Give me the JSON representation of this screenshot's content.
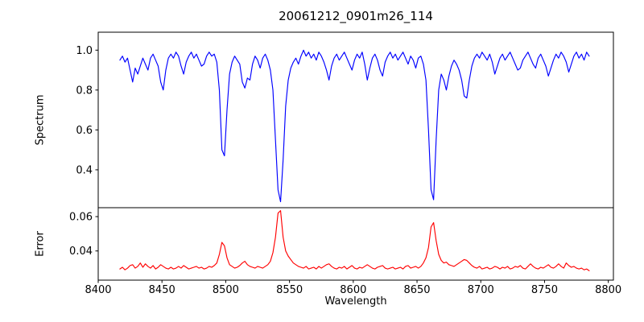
{
  "figure": {
    "title": "20061212_0901m26_114",
    "xlabel": "Wavelength",
    "ylabel_top": "Spectrum",
    "ylabel_bottom": "Error",
    "background": "#ffffff",
    "spine_color": "#000000",
    "tick_color": "#000000"
  },
  "chart_data": [
    {
      "type": "line",
      "panel": "top",
      "series_name": "Spectrum",
      "title": "20061212_0901m26_114",
      "ylabel": "Spectrum",
      "color": "#0000ff",
      "grid": false,
      "legend": "none",
      "x_start": 8417,
      "x_step": 2,
      "xlim": [
        8400,
        8804
      ],
      "ylim": [
        0.21,
        1.09
      ],
      "yticks": [
        1.0,
        0.8,
        0.6,
        0.4
      ],
      "ytick_labels": [
        "1.0",
        "0.8",
        "0.6",
        "0.4"
      ],
      "absorption_line_centers": [
        8498,
        8542,
        8662
      ],
      "values": [
        0.95,
        0.97,
        0.94,
        0.96,
        0.9,
        0.84,
        0.91,
        0.88,
        0.92,
        0.96,
        0.93,
        0.9,
        0.96,
        0.98,
        0.95,
        0.92,
        0.84,
        0.8,
        0.9,
        0.96,
        0.98,
        0.96,
        0.99,
        0.97,
        0.92,
        0.88,
        0.94,
        0.97,
        0.99,
        0.96,
        0.98,
        0.95,
        0.92,
        0.93,
        0.97,
        0.99,
        0.97,
        0.98,
        0.94,
        0.8,
        0.5,
        0.47,
        0.7,
        0.88,
        0.94,
        0.97,
        0.95,
        0.93,
        0.84,
        0.81,
        0.86,
        0.85,
        0.93,
        0.97,
        0.95,
        0.91,
        0.96,
        0.98,
        0.95,
        0.9,
        0.8,
        0.55,
        0.3,
        0.24,
        0.45,
        0.72,
        0.85,
        0.91,
        0.94,
        0.96,
        0.93,
        0.97,
        1.0,
        0.97,
        0.99,
        0.96,
        0.98,
        0.95,
        0.99,
        0.97,
        0.94,
        0.9,
        0.85,
        0.92,
        0.96,
        0.98,
        0.95,
        0.97,
        0.99,
        0.96,
        0.93,
        0.9,
        0.95,
        0.98,
        0.96,
        0.99,
        0.93,
        0.85,
        0.91,
        0.96,
        0.98,
        0.95,
        0.9,
        0.87,
        0.94,
        0.97,
        0.99,
        0.96,
        0.98,
        0.95,
        0.97,
        0.99,
        0.96,
        0.93,
        0.97,
        0.95,
        0.91,
        0.96,
        0.97,
        0.93,
        0.85,
        0.6,
        0.3,
        0.25,
        0.55,
        0.8,
        0.88,
        0.85,
        0.8,
        0.87,
        0.92,
        0.95,
        0.93,
        0.9,
        0.85,
        0.77,
        0.76,
        0.85,
        0.92,
        0.96,
        0.98,
        0.96,
        0.99,
        0.97,
        0.95,
        0.98,
        0.94,
        0.88,
        0.92,
        0.96,
        0.98,
        0.95,
        0.97,
        0.99,
        0.96,
        0.93,
        0.9,
        0.91,
        0.95,
        0.97,
        0.99,
        0.96,
        0.93,
        0.91,
        0.96,
        0.98,
        0.95,
        0.92,
        0.87,
        0.91,
        0.95,
        0.98,
        0.96,
        0.99,
        0.97,
        0.94,
        0.89,
        0.93,
        0.97,
        0.99,
        0.96,
        0.98,
        0.95,
        0.99,
        0.97
      ]
    },
    {
      "type": "line",
      "panel": "bottom",
      "series_name": "Error",
      "ylabel": "Error",
      "xlabel": "Wavelength",
      "color": "#ff0000",
      "grid": false,
      "legend": "none",
      "x_start": 8417,
      "x_step": 2,
      "xlim": [
        8400,
        8804
      ],
      "ylim": [
        0.023,
        0.0652
      ],
      "yticks": [
        0.06,
        0.04
      ],
      "ytick_labels": [
        "0.06",
        "0.04"
      ],
      "xticks": [
        8400,
        8450,
        8500,
        8550,
        8600,
        8650,
        8700,
        8750,
        8800
      ],
      "xtick_labels": [
        "8400",
        "8450",
        "8500",
        "8550",
        "8600",
        "8650",
        "8700",
        "8750",
        "8800"
      ],
      "values": [
        0.0295,
        0.0305,
        0.029,
        0.03,
        0.0315,
        0.032,
        0.03,
        0.031,
        0.033,
        0.0305,
        0.0325,
        0.031,
        0.03,
        0.0315,
        0.0295,
        0.0305,
        0.032,
        0.031,
        0.03,
        0.0295,
        0.0305,
        0.0295,
        0.03,
        0.031,
        0.03,
        0.0315,
        0.0305,
        0.0295,
        0.03,
        0.0305,
        0.031,
        0.03,
        0.0305,
        0.0295,
        0.03,
        0.031,
        0.0305,
        0.0315,
        0.033,
        0.038,
        0.045,
        0.043,
        0.036,
        0.032,
        0.031,
        0.03,
        0.0305,
        0.0315,
        0.033,
        0.034,
        0.032,
        0.031,
        0.0305,
        0.03,
        0.031,
        0.0305,
        0.03,
        0.031,
        0.032,
        0.034,
        0.039,
        0.048,
        0.062,
        0.0635,
        0.048,
        0.04,
        0.037,
        0.035,
        0.033,
        0.032,
        0.031,
        0.0305,
        0.03,
        0.031,
        0.0295,
        0.03,
        0.0305,
        0.0295,
        0.031,
        0.03,
        0.031,
        0.032,
        0.0325,
        0.031,
        0.03,
        0.0295,
        0.0305,
        0.03,
        0.031,
        0.0295,
        0.0305,
        0.0315,
        0.03,
        0.0295,
        0.0305,
        0.03,
        0.031,
        0.032,
        0.031,
        0.03,
        0.0295,
        0.0305,
        0.031,
        0.0315,
        0.03,
        0.0295,
        0.03,
        0.0305,
        0.0295,
        0.03,
        0.0305,
        0.0295,
        0.031,
        0.0315,
        0.03,
        0.0305,
        0.031,
        0.03,
        0.031,
        0.033,
        0.036,
        0.042,
        0.054,
        0.0565,
        0.046,
        0.038,
        0.0345,
        0.033,
        0.0335,
        0.032,
        0.0315,
        0.031,
        0.032,
        0.033,
        0.034,
        0.035,
        0.0345,
        0.033,
        0.0315,
        0.0305,
        0.03,
        0.031,
        0.0295,
        0.03,
        0.0305,
        0.0295,
        0.03,
        0.031,
        0.0305,
        0.0295,
        0.0305,
        0.03,
        0.031,
        0.0295,
        0.03,
        0.031,
        0.0305,
        0.0315,
        0.03,
        0.0295,
        0.031,
        0.0325,
        0.031,
        0.03,
        0.0295,
        0.0305,
        0.03,
        0.031,
        0.032,
        0.0305,
        0.03,
        0.031,
        0.0325,
        0.031,
        0.03,
        0.033,
        0.0315,
        0.0305,
        0.031,
        0.03,
        0.0295,
        0.03,
        0.029,
        0.0295,
        0.0285
      ]
    }
  ]
}
